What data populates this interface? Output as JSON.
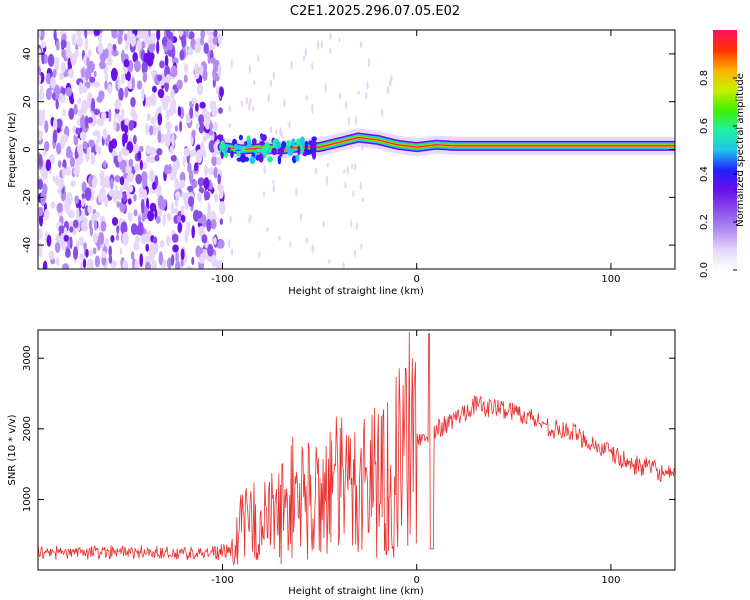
{
  "figure_title": "C2E1.2025.296.07.05.E02",
  "colors": {
    "snr_line": "#e8302e",
    "background": "#ffffff",
    "axis": "#000000",
    "tick_label": "#000000",
    "colormap": [
      "#ffffff",
      "#e6d6fa",
      "#b48bf2",
      "#8a4de8",
      "#6a10e8",
      "#2020ff",
      "#1ec8e8",
      "#20f0a0",
      "#40f000",
      "#c8f000",
      "#ffb000",
      "#ff3000",
      "#ff1060"
    ]
  },
  "chart_data": [
    {
      "type": "heatmap",
      "title": "",
      "xlabel": "Height of straight line (km)",
      "ylabel": "Frequency (Hz)",
      "xlim": [
        -195,
        133
      ],
      "ylim": [
        -50,
        50
      ],
      "x_ticks": [
        -100,
        0,
        100
      ],
      "x_tick_labels": [
        "-100",
        "0",
        "100"
      ],
      "y_ticks": [
        -40,
        -20,
        0,
        20,
        40
      ],
      "y_tick_labels": [
        "-40",
        "-20",
        "0",
        "20",
        "40"
      ],
      "grid": false,
      "colorbar": {
        "label": "Normalized spectral amplitude",
        "range": [
          0,
          1
        ],
        "ticks": [
          0,
          0.2,
          0.4,
          0.6,
          0.8
        ],
        "tick_labels": [
          "0.0",
          "0.2",
          "0.4",
          "0.6",
          "0.8"
        ]
      },
      "signal_trace": {
        "height_km": [
          -100,
          -90,
          -80,
          -70,
          -60,
          -50,
          -40,
          -30,
          -20,
          -10,
          0,
          10,
          20,
          40,
          60,
          80,
          100,
          120,
          133
        ],
        "frequency_hz": [
          1,
          0,
          0.5,
          0,
          1,
          1,
          3,
          5,
          4,
          2,
          1,
          2,
          1.5,
          1.5,
          1.5,
          1.5,
          1.5,
          1.5,
          1.5
        ]
      },
      "noise_region_km": [
        -195,
        -100
      ]
    },
    {
      "type": "line",
      "title": "",
      "xlabel": "Height of straight line (km)",
      "ylabel": "SNR (10 * v/v)",
      "xlim": [
        -195,
        133
      ],
      "ylim": [
        0,
        3400
      ],
      "x_ticks": [
        -100,
        0,
        100
      ],
      "x_tick_labels": [
        "-100",
        "0",
        "100"
      ],
      "y_ticks": [
        1000,
        2000,
        3000
      ],
      "y_tick_labels": [
        "1000",
        "2000",
        "3000"
      ],
      "grid": false,
      "series": [
        {
          "name": "SNR",
          "x": [
            -195,
            -180,
            -160,
            -140,
            -120,
            -100,
            -95,
            -90,
            -85,
            -80,
            -75,
            -70,
            -65,
            -60,
            -55,
            -50,
            -45,
            -40,
            -35,
            -30,
            -25,
            -20,
            -15,
            -10,
            -5,
            0,
            5,
            8,
            10,
            15,
            20,
            25,
            30,
            35,
            40,
            50,
            60,
            70,
            80,
            90,
            100,
            110,
            120,
            133
          ],
          "y": [
            260,
            240,
            260,
            250,
            240,
            250,
            300,
            600,
            700,
            650,
            750,
            800,
            1000,
            1100,
            950,
            1050,
            1200,
            1150,
            1150,
            1250,
            1300,
            1350,
            1300,
            1500,
            1750,
            1900,
            1800,
            1950,
            2000,
            2050,
            2150,
            2250,
            2350,
            2300,
            2300,
            2250,
            2150,
            2000,
            1950,
            1800,
            1650,
            1500,
            1450,
            1300
          ]
        }
      ]
    }
  ]
}
